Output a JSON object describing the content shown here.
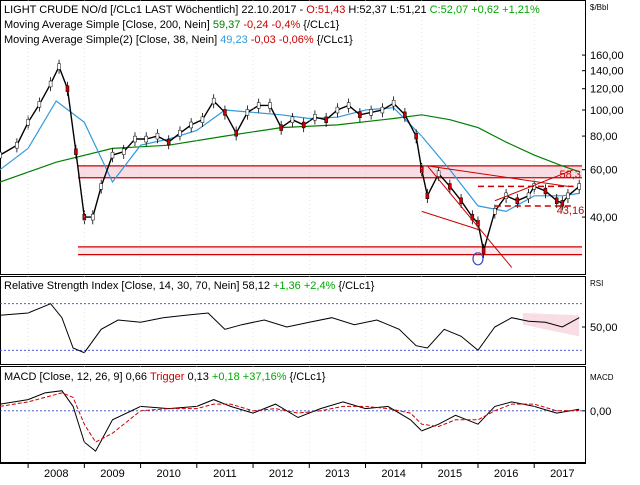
{
  "colors": {
    "background": "#ffffff",
    "price": "#000000",
    "candle_up": "#ffffff",
    "candle_down": "#cc0000",
    "sma200": "#008000",
    "sma38": "#3399dd",
    "rsi": "#000000",
    "macd": "#000000",
    "trigger": "#cc0000",
    "level_line": "#cc0000",
    "band_fill": "#f3c6d4",
    "positive": "#00aa00",
    "negative": "#cc0000",
    "rsi_ref": "#3344cc"
  },
  "price_panel": {
    "unit": "$/Bbl",
    "title_prefix": "LIGHT CRUDE NO/d [/CLc1 LAST Wöchentlich] 22.10.2017 - ",
    "open": "O:51,43",
    "high_low": "H:52,37 L:51,21",
    "close_change": "C:52,07 +0,62 +1,21%",
    "sma200_label": "Moving Average Simple [Close, 200, Nein]",
    "sma200_value": "59,37",
    "sma200_change": "-0,24 -0,4%",
    "sma200_suffix": "{/CLc1}",
    "sma38_label": "Moving Average Simple(2) [Close, 38, Nein]",
    "sma38_value": "49,23",
    "sma38_change": "-0,03 -0,06%",
    "sma38_suffix": "{/CLc1}",
    "annotation_high": "58,3",
    "annotation_low": "43,16",
    "y_ticks": [
      "160,00",
      "140,00",
      "120,00",
      "100,00",
      "80,00",
      "60,00",
      "40,00"
    ]
  },
  "rsi_panel": {
    "label": "Relative Strength Index [Close, 14, 30, 70, Nein]",
    "value": "58,12",
    "change": "+1,36 +2,4%",
    "suffix": "{/CLc1}",
    "unit": "RSI",
    "y_tick": "50,00"
  },
  "macd_panel": {
    "label": "MACD [Close, 12, 26, 9]",
    "value": "0,66",
    "trigger_label": "Trigger",
    "trigger_value": "0,13",
    "change": "+0,18 +37,16%",
    "suffix": "{/CLc1}",
    "unit": "MACD",
    "y_tick": "0,00"
  },
  "x_axis": {
    "years": [
      "2008",
      "2009",
      "2010",
      "2011",
      "2012",
      "2013",
      "2014",
      "2015",
      "2016",
      "2017"
    ]
  },
  "chart_data": [
    {
      "type": "line",
      "series": [
        {
          "name": "LIGHT CRUDE NO/d",
          "x": [
            2007.5,
            2007.8,
            2008.0,
            2008.2,
            2008.4,
            2008.55,
            2008.7,
            2008.85,
            2009.0,
            2009.15,
            2009.3,
            2009.5,
            2009.7,
            2009.9,
            2010.1,
            2010.3,
            2010.5,
            2010.7,
            2010.9,
            2011.1,
            2011.3,
            2011.5,
            2011.7,
            2011.9,
            2012.1,
            2012.3,
            2012.5,
            2012.7,
            2012.9,
            2013.1,
            2013.3,
            2013.5,
            2013.7,
            2013.9,
            2014.1,
            2014.3,
            2014.5,
            2014.7,
            2014.9,
            2015.0,
            2015.1,
            2015.3,
            2015.5,
            2015.7,
            2015.9,
            2016.0,
            2016.1,
            2016.3,
            2016.5,
            2016.7,
            2016.9,
            2017.0,
            2017.2,
            2017.4,
            2017.5,
            2017.6,
            2017.8
          ],
          "values": [
            68,
            74,
            90,
            105,
            125,
            145,
            120,
            70,
            40,
            40,
            52,
            68,
            70,
            78,
            78,
            80,
            76,
            82,
            88,
            92,
            108,
            98,
            82,
            98,
            104,
            104,
            86,
            92,
            88,
            94,
            92,
            100,
            104,
            96,
            98,
            100,
            106,
            96,
            80,
            60,
            48,
            58,
            52,
            46,
            40,
            38,
            30,
            42,
            48,
            46,
            48,
            52,
            50,
            46,
            45,
            48,
            52
          ]
        },
        {
          "name": "Moving Average Simple [Close, 200, Nein]",
          "x": [
            2007.5,
            2008.5,
            2009.5,
            2010.5,
            2011.5,
            2012.5,
            2013.5,
            2014.5,
            2015.0,
            2015.5,
            2016.0,
            2016.5,
            2017.0,
            2017.5,
            2017.8
          ],
          "values": [
            54,
            64,
            72,
            74,
            80,
            86,
            88,
            93,
            96,
            92,
            86,
            76,
            68,
            62,
            59
          ]
        },
        {
          "name": "Moving Average Simple(2) [Close, 38, Nein]",
          "x": [
            2007.5,
            2008.0,
            2008.5,
            2009.0,
            2009.5,
            2010.0,
            2010.5,
            2011.0,
            2011.5,
            2012.0,
            2012.5,
            2013.0,
            2013.5,
            2014.0,
            2014.5,
            2015.0,
            2015.5,
            2016.0,
            2016.5,
            2017.0,
            2017.5,
            2017.8
          ],
          "values": [
            60,
            72,
            108,
            90,
            54,
            74,
            78,
            84,
            100,
            98,
            96,
            93,
            94,
            100,
            102,
            80,
            60,
            44,
            42,
            48,
            48,
            49
          ]
        }
      ],
      "levels": [
        62,
        56,
        31,
        29
      ],
      "ylabel": "$/Bbl",
      "ylim": [
        25,
        170
      ],
      "yscale": "log",
      "xlim": [
        2007.5,
        2017.85
      ]
    },
    {
      "type": "line",
      "series": [
        {
          "name": "Relative Strength Index [Close, 14, 30, 70, Nein]",
          "x": [
            2007.5,
            2008.0,
            2008.4,
            2008.6,
            2008.8,
            2009.0,
            2009.3,
            2009.6,
            2010.0,
            2010.4,
            2010.8,
            2011.2,
            2011.5,
            2011.8,
            2012.2,
            2012.6,
            2013.0,
            2013.4,
            2013.8,
            2014.2,
            2014.6,
            2014.9,
            2015.1,
            2015.4,
            2015.7,
            2016.0,
            2016.3,
            2016.6,
            2016.9,
            2017.2,
            2017.5,
            2017.8
          ],
          "values": [
            60,
            62,
            70,
            58,
            32,
            28,
            48,
            56,
            54,
            58,
            60,
            62,
            48,
            52,
            56,
            50,
            54,
            58,
            52,
            56,
            48,
            34,
            32,
            48,
            42,
            30,
            50,
            58,
            55,
            54,
            50,
            58
          ]
        }
      ],
      "ylim": [
        20,
        80
      ],
      "reference_lines": [
        70,
        30
      ]
    },
    {
      "type": "line",
      "series": [
        {
          "name": "MACD",
          "x": [
            2007.5,
            2008.0,
            2008.3,
            2008.6,
            2008.8,
            2009.0,
            2009.2,
            2009.5,
            2010.0,
            2010.5,
            2011.0,
            2011.3,
            2011.6,
            2012.0,
            2012.4,
            2012.8,
            2013.2,
            2013.6,
            2014.0,
            2014.4,
            2014.8,
            2015.0,
            2015.3,
            2015.6,
            2016.0,
            2016.3,
            2016.6,
            2017.0,
            2017.4,
            2017.8
          ],
          "values": [
            3,
            5,
            8,
            9,
            2,
            -14,
            -18,
            -4,
            2,
            1,
            2,
            5,
            2,
            -1,
            3,
            -3,
            1,
            4,
            1,
            2,
            -4,
            -9,
            -6,
            -2,
            -6,
            2,
            4,
            2,
            -1,
            0.66
          ]
        },
        {
          "name": "Trigger",
          "x": [
            2007.5,
            2008.0,
            2008.3,
            2008.6,
            2008.8,
            2009.0,
            2009.2,
            2009.5,
            2010.0,
            2010.5,
            2011.0,
            2011.3,
            2011.6,
            2012.0,
            2012.4,
            2012.8,
            2013.2,
            2013.6,
            2014.0,
            2014.4,
            2014.8,
            2015.0,
            2015.3,
            2015.6,
            2016.0,
            2016.3,
            2016.6,
            2017.0,
            2017.4,
            2017.8
          ],
          "values": [
            2,
            4,
            6,
            8,
            6,
            -6,
            -14,
            -10,
            0,
            1,
            1,
            3,
            3,
            0,
            1,
            -1,
            0,
            2,
            2,
            1,
            -1,
            -6,
            -7,
            -4,
            -4,
            0,
            3,
            3,
            0,
            0.13
          ]
        }
      ],
      "ylim": [
        -22,
        12
      ]
    }
  ]
}
